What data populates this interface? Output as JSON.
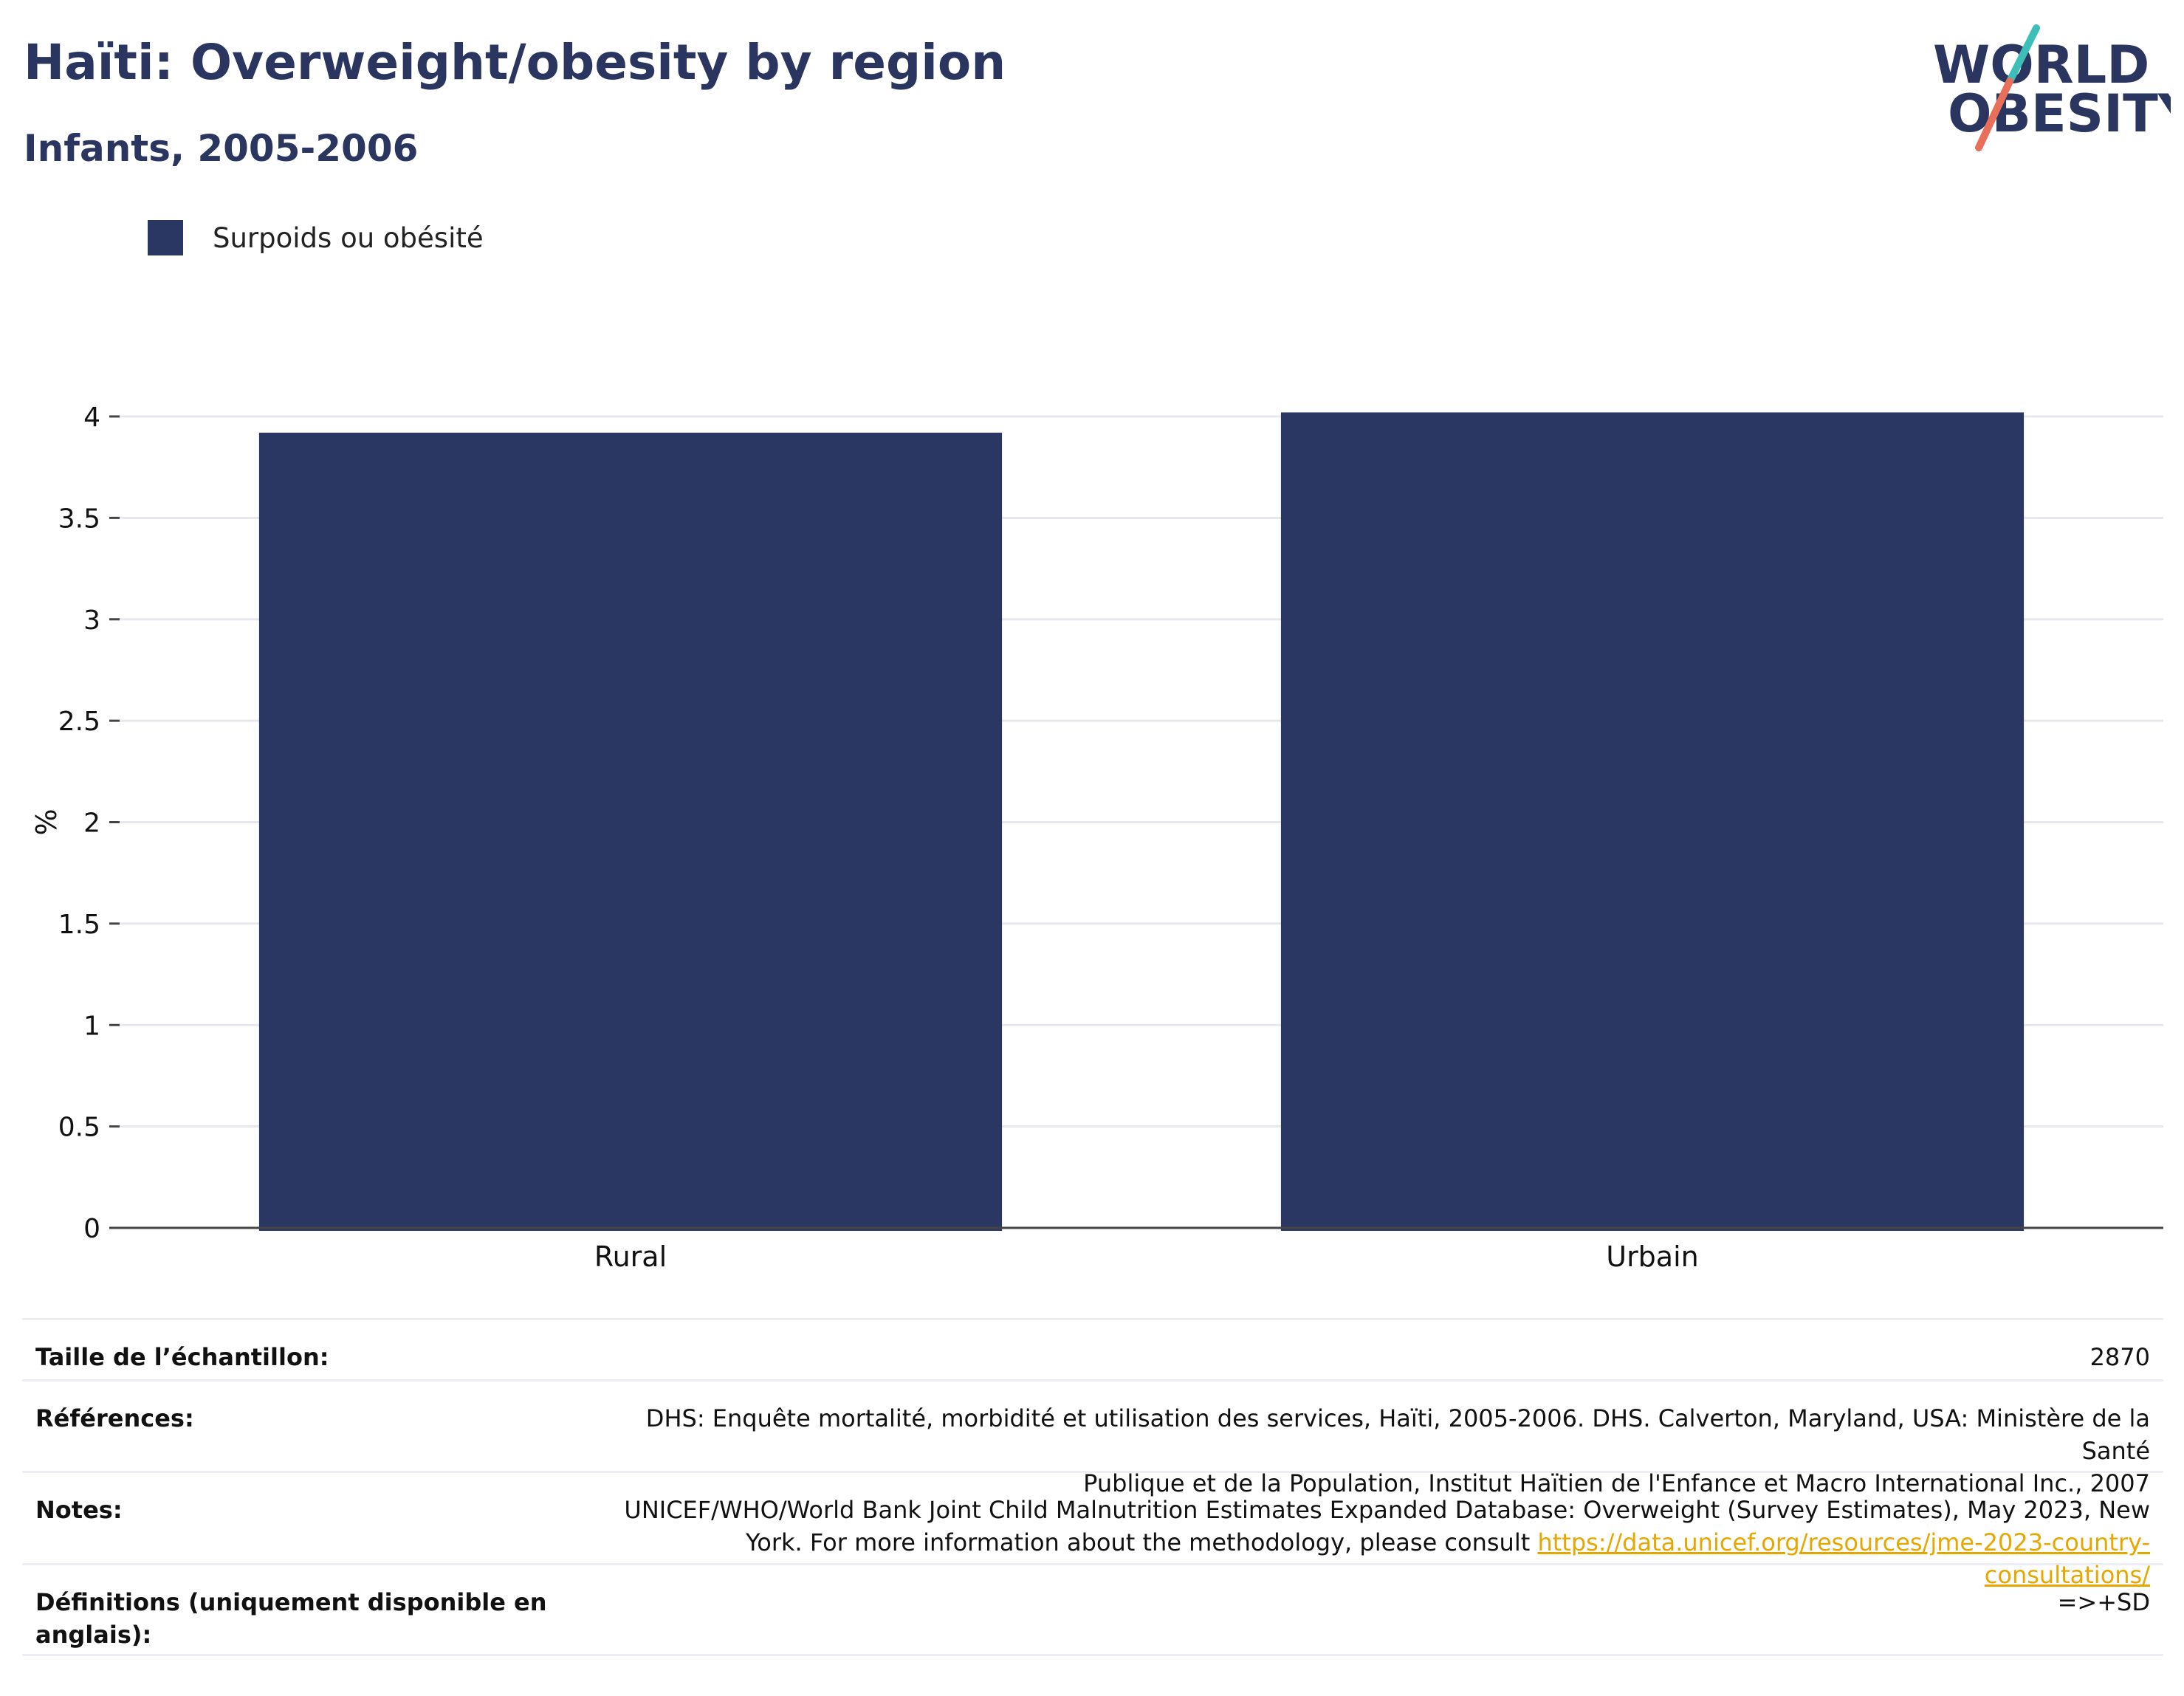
{
  "header": {
    "title": "Haïti: Overweight/obesity by region",
    "subtitle": "Infants, 2005-2006"
  },
  "logo": {
    "line1": "WORLD",
    "line2": "OBESITY",
    "colors": {
      "text": "#2a365f",
      "slash_top": "#3dbfb8",
      "slash_bottom": "#e8705a"
    }
  },
  "legend": {
    "items": [
      {
        "label": "Surpoids ou obésité",
        "color": "#2a3763"
      }
    ]
  },
  "chart_data": {
    "type": "bar",
    "categories": [
      "Rural",
      "Urbain"
    ],
    "series": [
      {
        "name": "Surpoids ou obésité",
        "values": [
          3.92,
          4.02
        ],
        "color": "#2a3763"
      }
    ],
    "ylabel": "%",
    "xlabel": "",
    "ylim": [
      0,
      4
    ],
    "yticks": [
      0,
      0.5,
      1,
      1.5,
      2,
      2.5,
      3,
      3.5,
      4
    ],
    "ytick_labels": [
      "0",
      "0.5",
      "1",
      "1.5",
      "2",
      "2.5",
      "3",
      "3.5",
      "4"
    ],
    "grid": true,
    "legend_position": "top-left"
  },
  "info": {
    "sample_size": {
      "label": "Taille de l’échantillon:",
      "value": "2870"
    },
    "references": {
      "label": "Références:",
      "line1": "DHS: Enquête mortalité, morbidité et utilisation des services, Haïti, 2005-2006. DHS. Calverton, Maryland, USA: Ministère de la Santé",
      "line2": "Publique et de la Population, Institut Haïtien de l'Enfance et Macro International Inc., 2007"
    },
    "notes": {
      "label": "Notes:",
      "line1": "UNICEF/WHO/World Bank Joint Child Malnutrition Estimates Expanded Database: Overweight (Survey Estimates), May 2023, New",
      "line2_text": "York. For more information about the methodology, please consult ",
      "link": "https://data.unicef.org/resources/jme-2023-country-consultations/"
    },
    "definitions": {
      "label": "Définitions (uniquement disponible en anglais):",
      "value": "=>+SD"
    }
  }
}
